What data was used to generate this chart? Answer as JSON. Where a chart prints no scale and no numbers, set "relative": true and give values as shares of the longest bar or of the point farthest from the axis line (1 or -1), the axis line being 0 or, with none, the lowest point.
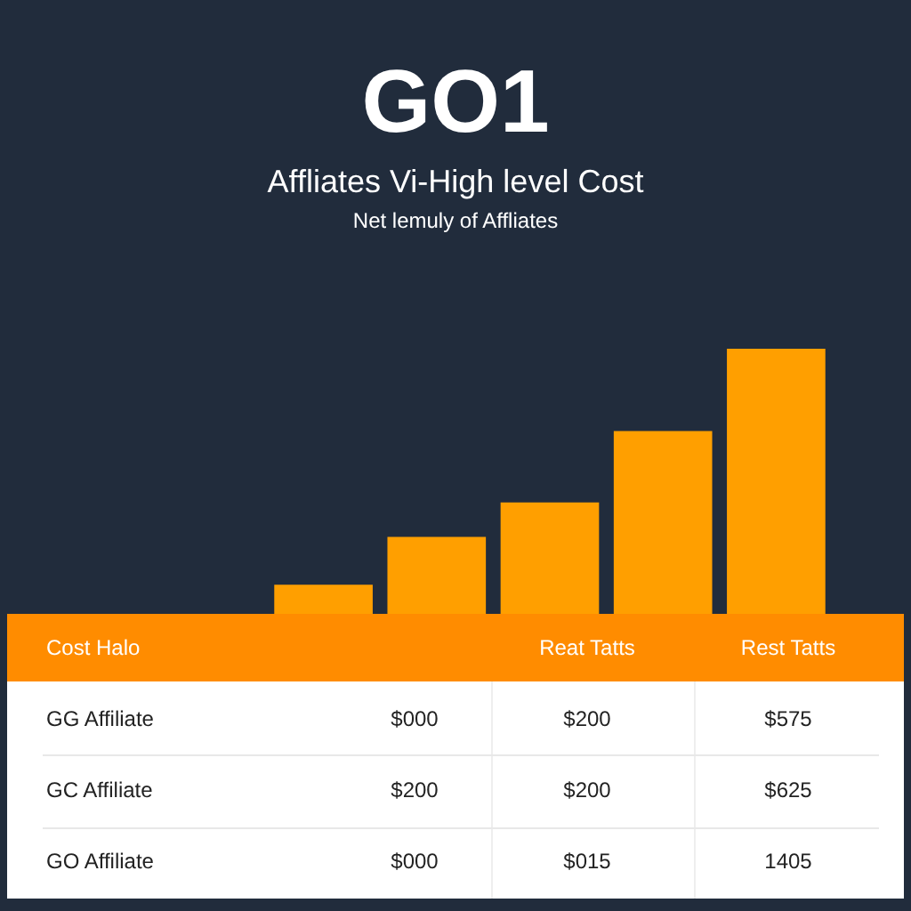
{
  "chart_data": {
    "type": "bar",
    "title": "GO1",
    "subtitle": "Affliates Vi-High level Cost\nNet lemuly of Affliates",
    "categories": [
      null,
      null,
      null,
      null,
      null
    ],
    "values": [
      0.11,
      0.29,
      0.42,
      0.69,
      1
    ],
    "color": "#ff9f00",
    "relative": true,
    "grid": false,
    "legend": false,
    "annotations": [
      "Cost Halo",
      "Reat Tatts",
      "Rest Tatts",
      "GG Affiliate",
      "$000",
      "$200",
      "$575",
      "GC Affiliate",
      "$200",
      "$200",
      "$625",
      "GO Affiliate",
      "$000",
      "$015",
      "1405"
    ]
  }
}
